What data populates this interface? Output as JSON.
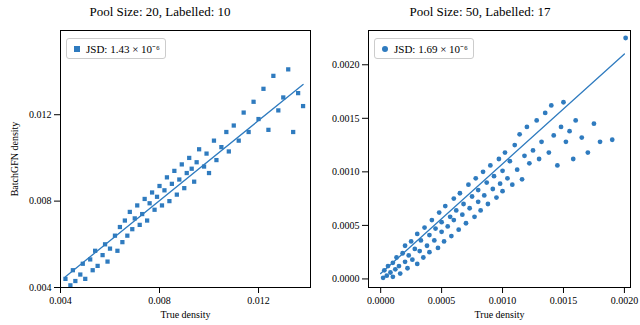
{
  "chart_data": [
    {
      "type": "scatter",
      "title": "Pool Size: 20, Labelled: 10",
      "x_label": "True density",
      "y_label": "BatchGFN density",
      "xlim": [
        0.004,
        0.0141
      ],
      "ylim": [
        0.004,
        0.0159
      ],
      "xticks": [
        0.004,
        0.008,
        0.012
      ],
      "yticks": [
        0.004,
        0.008,
        0.012
      ],
      "grid": false,
      "legend": "top-left",
      "series": [
        {
          "name": "JSD: 1.43 × 10⁻⁶",
          "type": "scatter",
          "marker": "square",
          "color": "#2f7bbf",
          "x": [
            0.0042,
            0.0044,
            0.0045,
            0.0046,
            0.0048,
            0.0049,
            0.005,
            0.0052,
            0.0053,
            0.0054,
            0.0055,
            0.0057,
            0.0058,
            0.0059,
            0.006,
            0.0062,
            0.0063,
            0.0064,
            0.0065,
            0.0066,
            0.0067,
            0.0068,
            0.0069,
            0.007,
            0.0071,
            0.0072,
            0.0073,
            0.0074,
            0.0075,
            0.0076,
            0.0077,
            0.0078,
            0.0079,
            0.008,
            0.0081,
            0.0082,
            0.0083,
            0.0084,
            0.0085,
            0.0086,
            0.0087,
            0.0088,
            0.0089,
            0.009,
            0.0091,
            0.0092,
            0.0093,
            0.0094,
            0.0095,
            0.0096,
            0.0098,
            0.0099,
            0.01,
            0.0102,
            0.0103,
            0.0105,
            0.0107,
            0.0108,
            0.011,
            0.0112,
            0.0114,
            0.0116,
            0.0118,
            0.012,
            0.0122,
            0.0124,
            0.0126,
            0.0128,
            0.013,
            0.0132,
            0.0134,
            0.0136,
            0.0138
          ],
          "values": [
            0.0044,
            0.0041,
            0.0048,
            0.0043,
            0.0046,
            0.0051,
            0.0044,
            0.0053,
            0.0048,
            0.0057,
            0.005,
            0.0055,
            0.006,
            0.0052,
            0.0058,
            0.0064,
            0.0057,
            0.0068,
            0.0061,
            0.0071,
            0.0064,
            0.0075,
            0.0067,
            0.0072,
            0.0078,
            0.0069,
            0.0074,
            0.0081,
            0.0071,
            0.0079,
            0.0084,
            0.0076,
            0.0082,
            0.0087,
            0.0078,
            0.0085,
            0.0091,
            0.008,
            0.0088,
            0.0094,
            0.0083,
            0.009,
            0.0097,
            0.0086,
            0.0093,
            0.01,
            0.0095,
            0.0089,
            0.0098,
            0.0104,
            0.0096,
            0.0102,
            0.0093,
            0.0108,
            0.0099,
            0.0105,
            0.0112,
            0.0103,
            0.0115,
            0.0108,
            0.0121,
            0.0112,
            0.0126,
            0.0118,
            0.0132,
            0.0113,
            0.0138,
            0.0122,
            0.0128,
            0.0141,
            0.0112,
            0.013,
            0.0124
          ]
        },
        {
          "type": "line",
          "line_style": "solid",
          "color": "#2f7bbf",
          "x": [
            0.0042,
            0.0138
          ],
          "values": [
            0.0045,
            0.0134
          ]
        }
      ]
    },
    {
      "type": "scatter",
      "title": "Pool Size: 50, Labelled: 17",
      "x_label": "True density",
      "xlim": [
        -0.0001,
        0.00205
      ],
      "ylim": [
        -8e-05,
        0.00232
      ],
      "xticks": [
        {
          "value": 0,
          "label": "0.0000"
        },
        {
          "value": 0.0005,
          "label": "0.0005"
        },
        {
          "value": 0.001,
          "label": "0.0010"
        },
        {
          "value": 0.0015,
          "label": "0.0015"
        },
        {
          "value": 0.002,
          "label": "0.0020"
        }
      ],
      "yticks": [
        {
          "value": 0,
          "label": "0.0000"
        },
        {
          "value": 0.0005,
          "label": "0.0005"
        },
        {
          "value": 0.001,
          "label": "0.0010"
        },
        {
          "value": 0.0015,
          "label": "0.0015"
        },
        {
          "value": 0.002,
          "label": "0.0020"
        }
      ],
      "grid": false,
      "legend": "top-left",
      "series": [
        {
          "name": "JSD: 1.69 × 10⁻⁶",
          "type": "scatter",
          "marker": "circle",
          "color": "#2f7bbf",
          "x": [
            2e-05,
            3e-05,
            5e-05,
            6e-05,
            8e-05,
            0.0001,
            0.0001,
            0.00012,
            0.00013,
            0.00015,
            0.00016,
            0.00018,
            0.0002,
            0.0002,
            0.00022,
            0.00023,
            0.00025,
            0.00026,
            0.00028,
            0.0003,
            0.0003,
            0.00032,
            0.00033,
            0.00035,
            0.00036,
            0.00038,
            0.0004,
            0.0004,
            0.00042,
            0.00044,
            0.00045,
            0.00047,
            0.00048,
            0.0005,
            0.0005,
            0.00052,
            0.00053,
            0.00055,
            0.00057,
            0.00058,
            0.0006,
            0.0006,
            0.00062,
            0.00064,
            0.00065,
            0.00067,
            0.00068,
            0.0007,
            0.00072,
            0.00073,
            0.00075,
            0.00077,
            0.00078,
            0.0008,
            0.0008,
            0.00082,
            0.00084,
            0.00085,
            0.00087,
            0.00088,
            0.0009,
            0.00092,
            0.00093,
            0.00095,
            0.00097,
            0.00098,
            0.001,
            0.001,
            0.00102,
            0.00104,
            0.00106,
            0.00108,
            0.0011,
            0.00112,
            0.00114,
            0.00116,
            0.00118,
            0.0012,
            0.00122,
            0.00125,
            0.00128,
            0.0013,
            0.00132,
            0.00135,
            0.00138,
            0.0014,
            0.00142,
            0.00145,
            0.00148,
            0.0015,
            0.00152,
            0.00155,
            0.00158,
            0.0016,
            0.00165,
            0.0017,
            0.00175,
            0.0018,
            0.0019,
            0.00201
          ],
          "values": [
            1e-05,
            8e-05,
            3e-05,
            0.00012,
            6e-05,
            0.00015,
            2e-05,
            9e-05,
            0.0002,
            0.00012,
            5e-05,
            0.00024,
            0.00016,
            0.00031,
            0.0001,
            0.00022,
            0.00035,
            0.00018,
            0.00028,
            0.00014,
            0.00042,
            0.00026,
            0.00036,
            0.0002,
            0.00048,
            0.00031,
            0.00041,
            0.00025,
            0.00055,
            0.00036,
            0.00047,
            0.00029,
            0.00062,
            0.00044,
            0.00053,
            0.00035,
            0.00068,
            0.00049,
            0.00058,
            0.0004,
            0.00075,
            0.00055,
            0.00064,
            0.00046,
            0.0008,
            0.0006,
            0.0007,
            0.00052,
            0.00088,
            0.00066,
            0.00077,
            0.00058,
            0.00094,
            0.00072,
            0.00083,
            0.00064,
            0.001,
            0.00078,
            0.0009,
            0.0007,
            0.00106,
            0.00084,
            0.00096,
            0.00076,
            0.00112,
            0.00089,
            0.00101,
            0.00082,
            0.00118,
            0.00094,
            0.0011,
            0.00088,
            0.00125,
            0.00102,
            0.00135,
            0.00093,
            0.00115,
            0.00142,
            0.00108,
            0.0012,
            0.00148,
            0.00112,
            0.00128,
            0.00155,
            0.00118,
            0.00162,
            0.00134,
            0.00106,
            0.00142,
            0.00165,
            0.00128,
            0.00138,
            0.00112,
            0.00148,
            0.00132,
            0.00118,
            0.00145,
            0.00128,
            0.0013,
            0.00225
          ]
        },
        {
          "type": "line",
          "line_style": "solid",
          "color": "#2f7bbf",
          "x": [
            0.0,
            0.002
          ],
          "values": [
            5e-05,
            0.0021
          ]
        }
      ]
    }
  ]
}
